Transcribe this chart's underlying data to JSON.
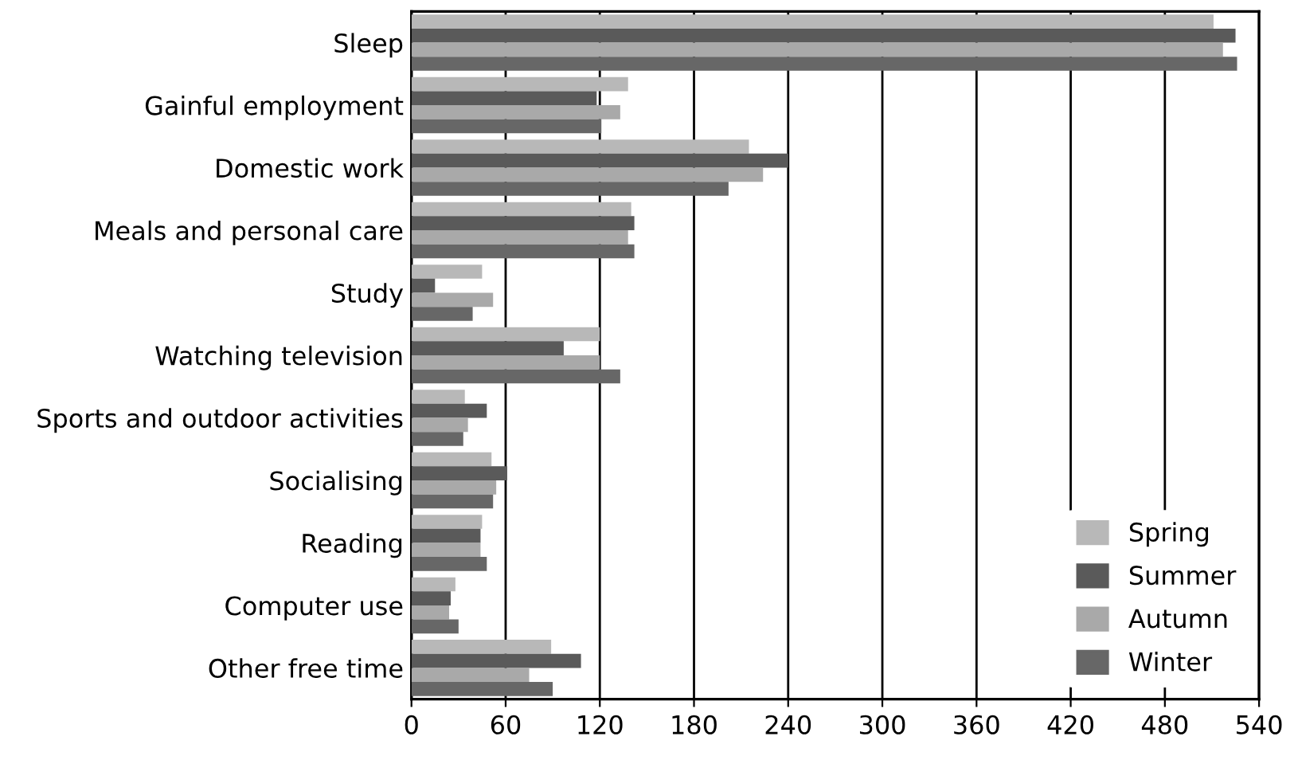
{
  "chart_data": {
    "type": "bar",
    "orientation": "horizontal",
    "categories": [
      "Sleep",
      "Gainful employment",
      "Domestic work",
      "Meals and personal care",
      "Study",
      "Watching television",
      "Sports and outdoor activities",
      "Socialising",
      "Reading",
      "Computer use",
      "Other free time"
    ],
    "series": [
      {
        "name": "Spring",
        "color": "#b8b8b8",
        "values": [
          511,
          138,
          215,
          140,
          45,
          120,
          34,
          51,
          45,
          28,
          89
        ]
      },
      {
        "name": "Summer",
        "color": "#5a5a5a",
        "values": [
          525,
          118,
          240,
          142,
          15,
          97,
          48,
          61,
          44,
          25,
          108
        ]
      },
      {
        "name": "Autumn",
        "color": "#a9a9a9",
        "values": [
          517,
          133,
          224,
          138,
          52,
          120,
          36,
          54,
          44,
          24,
          75
        ]
      },
      {
        "name": "Winter",
        "color": "#676767",
        "values": [
          526,
          121,
          202,
          142,
          39,
          133,
          33,
          52,
          48,
          30,
          90
        ]
      }
    ],
    "xlim": [
      0,
      540
    ],
    "xticks": [
      0,
      60,
      120,
      180,
      240,
      300,
      360,
      420,
      480,
      540
    ],
    "grid": "x",
    "legend": "bottom right"
  }
}
